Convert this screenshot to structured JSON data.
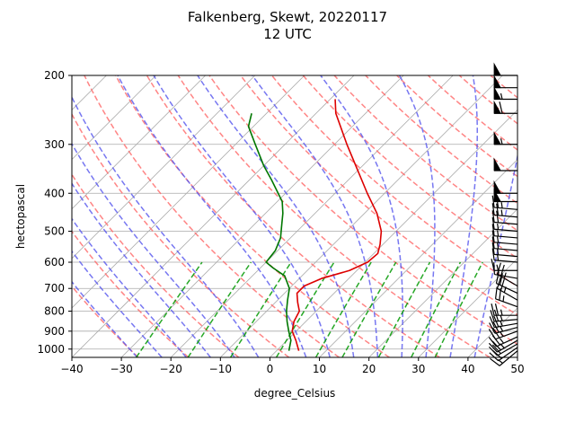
{
  "chart_data": {
    "type": "line",
    "chart_kind": "skew-t log-p diagram",
    "title_line1": "Falkenberg, Skewt, 20220117",
    "title_line2": "12 UTC",
    "xlabel": "degree_Celsius",
    "ylabel": "hectopascal",
    "xlim": [
      -40,
      50
    ],
    "ylim": [
      1050,
      200
    ],
    "yscale": "log",
    "x_ticks": [
      -40,
      -30,
      -20,
      -10,
      0,
      10,
      20,
      30,
      40,
      50
    ],
    "y_ticks": [
      1000,
      900,
      800,
      700,
      600,
      500,
      400,
      300,
      200
    ],
    "grid": true,
    "skew_isotherms": true,
    "colors": {
      "temperature": "#dd0000",
      "dewpoint": "#007700",
      "dry_adiabats": "#ff6666",
      "moist_adiabats": "#5555ee",
      "mixing_ratio_lines": "#009900",
      "grid": "#aaaaaa",
      "wind_barbs": "#000000"
    },
    "series": [
      {
        "key": "temperature",
        "points": [
          {
            "p": 1010,
            "t": 4.5
          },
          {
            "p": 950,
            "t": 1.8
          },
          {
            "p": 900,
            "t": -0.8
          },
          {
            "p": 850,
            "t": -2.4
          },
          {
            "p": 800,
            "t": -3.4
          },
          {
            "p": 760,
            "t": -5.5
          },
          {
            "p": 720,
            "t": -7.5
          },
          {
            "p": 690,
            "t": -7.5
          },
          {
            "p": 660,
            "t": -5.5
          },
          {
            "p": 630,
            "t": -1.5
          },
          {
            "p": 600,
            "t": 0.5
          },
          {
            "p": 570,
            "t": 0.8
          },
          {
            "p": 540,
            "t": -0.6
          },
          {
            "p": 500,
            "t": -3.0
          },
          {
            "p": 450,
            "t": -7.5
          },
          {
            "p": 400,
            "t": -13.5
          },
          {
            "p": 350,
            "t": -20.0
          },
          {
            "p": 300,
            "t": -27.5
          },
          {
            "p": 250,
            "t": -36.0
          },
          {
            "p": 230,
            "t": -39.0
          }
        ]
      },
      {
        "key": "dewpoint",
        "points": [
          {
            "p": 1010,
            "t": 2.5
          },
          {
            "p": 950,
            "t": 0.8
          },
          {
            "p": 900,
            "t": -1.5
          },
          {
            "p": 850,
            "t": -3.8
          },
          {
            "p": 800,
            "t": -6.0
          },
          {
            "p": 750,
            "t": -8.0
          },
          {
            "p": 700,
            "t": -10.0
          },
          {
            "p": 650,
            "t": -13.5
          },
          {
            "p": 620,
            "t": -17.5
          },
          {
            "p": 600,
            "t": -20.0
          },
          {
            "p": 560,
            "t": -20.5
          },
          {
            "p": 520,
            "t": -22.0
          },
          {
            "p": 480,
            "t": -24.5
          },
          {
            "p": 450,
            "t": -26.5
          },
          {
            "p": 420,
            "t": -29.0
          },
          {
            "p": 400,
            "t": -31.5
          },
          {
            "p": 370,
            "t": -35.5
          },
          {
            "p": 340,
            "t": -40.0
          },
          {
            "p": 300,
            "t": -46.0
          },
          {
            "p": 270,
            "t": -51.0
          },
          {
            "p": 250,
            "t": -53.0
          }
        ]
      }
    ],
    "wind_barbs_pressure": [
      1010,
      990,
      970,
      950,
      930,
      900,
      880,
      860,
      840,
      820,
      780,
      750,
      720,
      690,
      660,
      630,
      600,
      580,
      560,
      540,
      520,
      500,
      480,
      460,
      440,
      420,
      400,
      350,
      300,
      250,
      230,
      215,
      200
    ],
    "wind_barbs": [
      {
        "speed": 15,
        "dir": 230
      },
      {
        "speed": 20,
        "dir": 235
      },
      {
        "speed": 20,
        "dir": 240
      },
      {
        "speed": 25,
        "dir": 240
      },
      {
        "speed": 25,
        "dir": 245
      },
      {
        "speed": 25,
        "dir": 250
      },
      {
        "speed": 25,
        "dir": 255
      },
      {
        "speed": 25,
        "dir": 260
      },
      {
        "speed": 25,
        "dir": 265
      },
      {
        "speed": 25,
        "dir": 270
      },
      {
        "speed": 25,
        "dir": 290
      },
      {
        "speed": 25,
        "dir": 300
      },
      {
        "speed": 20,
        "dir": 295
      },
      {
        "speed": 25,
        "dir": 300
      },
      {
        "speed": 15,
        "dir": 280
      },
      {
        "speed": 15,
        "dir": 270
      },
      {
        "speed": 15,
        "dir": 275
      },
      {
        "speed": 15,
        "dir": 275
      },
      {
        "speed": 15,
        "dir": 275
      },
      {
        "speed": 15,
        "dir": 275
      },
      {
        "speed": 15,
        "dir": 275
      },
      {
        "speed": 15,
        "dir": 275
      },
      {
        "speed": 20,
        "dir": 275
      },
      {
        "speed": 25,
        "dir": 275
      },
      {
        "speed": 25,
        "dir": 275
      },
      {
        "speed": 50,
        "dir": 270
      },
      {
        "speed": 50,
        "dir": 270
      },
      {
        "speed": 50,
        "dir": 270
      },
      {
        "speed": 55,
        "dir": 270
      },
      {
        "speed": 60,
        "dir": 270
      },
      {
        "speed": 55,
        "dir": 270
      },
      {
        "speed": 50,
        "dir": 270
      },
      {
        "speed": 50,
        "dir": 270
      }
    ]
  }
}
